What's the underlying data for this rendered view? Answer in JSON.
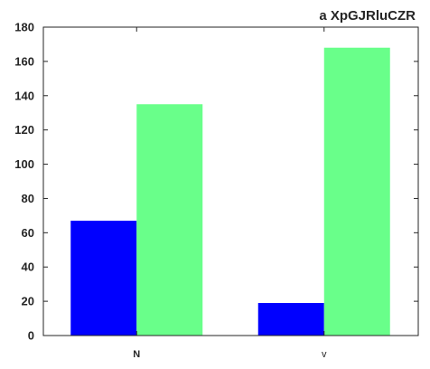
{
  "chart_data": {
    "type": "bar",
    "title": "a XpGJRluCZR",
    "xlabel": "",
    "ylabel": "",
    "categories": [
      "N",
      "v"
    ],
    "series": [
      {
        "color": "#0000ff",
        "values": [
          67,
          19
        ]
      },
      {
        "color": "#69ff8a",
        "values": [
          135,
          168
        ]
      }
    ],
    "ylim": [
      0,
      180
    ],
    "yticks": [
      0,
      20,
      40,
      60,
      80,
      100,
      120,
      140,
      160,
      180
    ],
    "grid": false,
    "legend": "none"
  }
}
